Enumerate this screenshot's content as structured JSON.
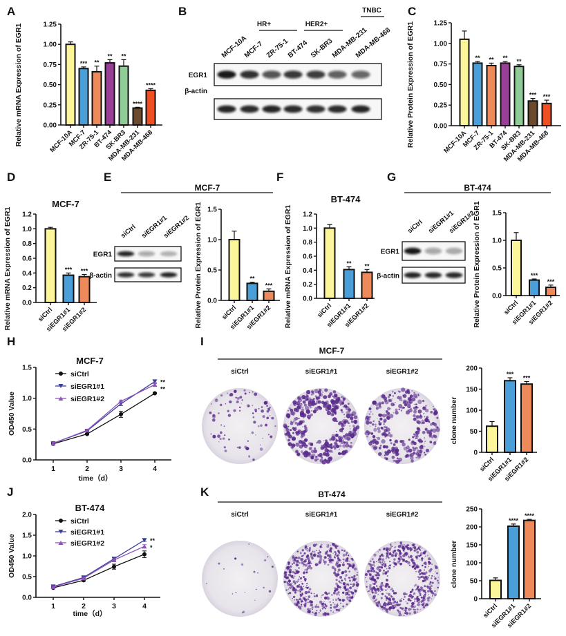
{
  "panel_letters": [
    "A",
    "B",
    "C",
    "D",
    "E",
    "F",
    "G",
    "H",
    "I",
    "J",
    "K"
  ],
  "blot_B": {
    "groups": [
      "HR+",
      "HER2+",
      "TNBC"
    ],
    "lanes": [
      "MCF-10A",
      "MCF-7",
      "ZR-75-1",
      "BT-474",
      "SK-BR3",
      "MDA-MB-231",
      "MDA-MB-468"
    ],
    "rows": [
      "EGR1",
      "β-actin"
    ]
  },
  "blot_E": {
    "title": "MCF-7",
    "lanes": [
      "siCtrl",
      "siEGR1#1",
      "siEGR1#2"
    ],
    "rows": [
      "EGR1",
      "β-actin"
    ]
  },
  "blot_G": {
    "title": "BT-474",
    "lanes": [
      "siCtrl",
      "siEGR1#1",
      "siEGR1#2"
    ],
    "rows": [
      "EGR1",
      "β-actin"
    ]
  },
  "colony_I": {
    "title": "MCF-7",
    "labels": [
      "siCtrl",
      "siEGR1#1",
      "siEGR1#2"
    ]
  },
  "colony_K": {
    "title": "BT-474",
    "labels": [
      "siCtrl",
      "siEGR1#1",
      "siEGR1#2"
    ]
  },
  "chart_data": [
    {
      "id": "A",
      "type": "bar",
      "title": "",
      "ylabel": "Relative mRNA Expression of EGR1",
      "categories": [
        "MCF-10A",
        "MCF-7",
        "ZR-75-1",
        "BT-474",
        "SK-BR3",
        "MDA-MB-231",
        "MDA-MB-468"
      ],
      "values": [
        1.0,
        0.7,
        0.66,
        0.77,
        0.73,
        0.21,
        0.43
      ],
      "errors": [
        0.03,
        0.02,
        0.07,
        0.04,
        0.08,
        0.01,
        0.02
      ],
      "significance": [
        "",
        "***",
        "**",
        "**",
        "**",
        "****",
        "****"
      ],
      "colors": [
        "#fdf59a",
        "#4a9fd8",
        "#ee8a5a",
        "#9a3f98",
        "#8fcc98",
        "#6b4a2e",
        "#f04e23"
      ],
      "ylim": [
        0,
        1.25
      ],
      "ytick_values": [
        0,
        0.25,
        0.5,
        0.75,
        1.0,
        1.25
      ],
      "ytick_labels": [
        "0.00",
        "0.25",
        "0.50",
        "0.75",
        "1.00",
        "1.25"
      ]
    },
    {
      "id": "C",
      "type": "bar",
      "title": "",
      "ylabel": "Relative Protein Expression of EGR1",
      "categories": [
        "MCF-10A",
        "MCF-7",
        "ZR-75-1",
        "BT-474",
        "SK-BR3",
        "MDA-MB-231",
        "MDA-MB-468"
      ],
      "values": [
        1.05,
        0.76,
        0.73,
        0.76,
        0.72,
        0.3,
        0.27
      ],
      "errors": [
        0.1,
        0.02,
        0.03,
        0.02,
        0.02,
        0.03,
        0.04
      ],
      "significance": [
        "",
        "**",
        "**",
        "**",
        "**",
        "***",
        "***"
      ],
      "colors": [
        "#fdf59a",
        "#4a9fd8",
        "#ee8a5a",
        "#9a3f98",
        "#8fcc98",
        "#6b4a2e",
        "#f04e23"
      ],
      "ylim": [
        0,
        1.25
      ],
      "ytick_values": [
        0,
        0.25,
        0.5,
        0.75,
        1.0,
        1.25
      ],
      "ytick_labels": [
        "0.00",
        "0.25",
        "0.50",
        "0.75",
        "1.00",
        "1.25"
      ]
    },
    {
      "id": "D",
      "type": "bar",
      "title": "MCF-7",
      "ylabel": "Relative mRNA Expression of EGR1",
      "categories": [
        "siCtrl",
        "siEGR1#1",
        "siEGR1#2"
      ],
      "values": [
        1.0,
        0.37,
        0.35
      ],
      "errors": [
        0.02,
        0.03,
        0.03
      ],
      "significance": [
        "",
        "***",
        "***"
      ],
      "colors": [
        "#fdf59a",
        "#4a9fd8",
        "#ee8a5a"
      ],
      "ylim": [
        0,
        1.2
      ],
      "ytick_values": [
        0,
        0.2,
        0.4,
        0.6,
        0.8,
        1.0,
        1.2
      ],
      "ytick_labels": [
        "0.0",
        "0.2",
        "0.4",
        "0.6",
        "0.8",
        "1.0",
        "1.2"
      ]
    },
    {
      "id": "E",
      "type": "bar",
      "title": "",
      "ylabel": "Relative Protein Expression of EGR1",
      "categories": [
        "siCtrl",
        "siEGR1#1",
        "siEGR1#2"
      ],
      "values": [
        1.0,
        0.28,
        0.15
      ],
      "errors": [
        0.14,
        0.02,
        0.04
      ],
      "significance": [
        "",
        "**",
        "***"
      ],
      "colors": [
        "#fdf59a",
        "#4a9fd8",
        "#ee8a5a"
      ],
      "ylim": [
        0,
        1.5
      ],
      "ytick_values": [
        0,
        0.5,
        1.0,
        1.5
      ],
      "ytick_labels": [
        "0.0",
        "0.5",
        "1.0",
        "1.5"
      ]
    },
    {
      "id": "F",
      "type": "bar",
      "title": "BT-474",
      "ylabel": "Relative mRNA Expression of EGR1",
      "categories": [
        "siCtrl",
        "siEGR1#1",
        "siEGR1#2"
      ],
      "values": [
        1.0,
        0.41,
        0.37
      ],
      "errors": [
        0.05,
        0.04,
        0.04
      ],
      "significance": [
        "",
        "**",
        "**"
      ],
      "colors": [
        "#fdf59a",
        "#4a9fd8",
        "#ee8a5a"
      ],
      "ylim": [
        0,
        1.2
      ],
      "ytick_values": [
        0,
        0.2,
        0.4,
        0.6,
        0.8,
        1.0,
        1.2
      ],
      "ytick_labels": [
        "0.0",
        "0.2",
        "0.4",
        "0.6",
        "0.8",
        "1.0",
        "1.2"
      ]
    },
    {
      "id": "G",
      "type": "bar",
      "title": "",
      "ylabel": "Relative Protein Expression of EGR1",
      "categories": [
        "siCtrl",
        "siEGR1#1",
        "siEGR1#2"
      ],
      "values": [
        1.0,
        0.28,
        0.15
      ],
      "errors": [
        0.14,
        0.02,
        0.04
      ],
      "significance": [
        "",
        "***",
        "***"
      ],
      "colors": [
        "#fdf59a",
        "#4a9fd8",
        "#ee8a5a"
      ],
      "ylim": [
        0,
        1.5
      ],
      "ytick_values": [
        0,
        0.5,
        1.0,
        1.5
      ],
      "ytick_labels": [
        "0.0",
        "0.5",
        "1.0",
        "1.5"
      ]
    },
    {
      "id": "H",
      "type": "line",
      "title": "MCF-7",
      "xlabel": "time（d）",
      "ylabel": "OD450 Value",
      "x": [
        1,
        2,
        3,
        4
      ],
      "xtick_labels": [
        "1",
        "2",
        "3",
        "4"
      ],
      "xlim": [
        0.7,
        4.5
      ],
      "ylim": [
        0,
        1.5
      ],
      "ytick_values": [
        0,
        0.5,
        1.0,
        1.5
      ],
      "ytick_labels": [
        "0.0",
        "0.5",
        "1.0",
        "1.5"
      ],
      "legend": "top-left",
      "series": [
        {
          "name": "siCtrl",
          "values": [
            0.26,
            0.42,
            0.74,
            1.08
          ],
          "errors": [
            0.02,
            0.01,
            0.05,
            0.01
          ],
          "color": "#111111",
          "marker": "circle",
          "significance": ""
        },
        {
          "name": "siEGR1#1",
          "values": [
            0.27,
            0.47,
            0.91,
            1.27
          ],
          "errors": [
            0.02,
            0.01,
            0.03,
            0.03
          ],
          "color": "#3b3f9c",
          "marker": "triangle-down",
          "significance": "**"
        },
        {
          "name": "siEGR1#2",
          "values": [
            0.27,
            0.48,
            0.95,
            1.22
          ],
          "errors": [
            0.02,
            0.01,
            0.02,
            0.03
          ],
          "color": "#8d53b8",
          "marker": "triangle-up",
          "significance": "**"
        }
      ]
    },
    {
      "id": "J",
      "type": "line",
      "title": "BT-474",
      "xlabel": "time（d）",
      "ylabel": "OD450 Value",
      "x": [
        1,
        2,
        3,
        4
      ],
      "xtick_labels": [
        "1",
        "2",
        "3",
        "4"
      ],
      "xlim": [
        0.7,
        4.5
      ],
      "ylim": [
        0,
        2.0
      ],
      "ytick_values": [
        0,
        0.5,
        1.0,
        1.5,
        2.0
      ],
      "ytick_labels": [
        "0.0",
        "0.5",
        "1.0",
        "1.5",
        "2.0"
      ],
      "legend": "top-left",
      "series": [
        {
          "name": "siCtrl",
          "values": [
            0.23,
            0.41,
            0.74,
            1.04
          ],
          "errors": [
            0.02,
            0.02,
            0.06,
            0.08
          ],
          "color": "#111111",
          "marker": "circle",
          "significance": ""
        },
        {
          "name": "siEGR1#1",
          "values": [
            0.26,
            0.48,
            0.93,
            1.38
          ],
          "errors": [
            0.02,
            0.02,
            0.03,
            0.03
          ],
          "color": "#3b3f9c",
          "marker": "triangle-down",
          "significance": "**"
        },
        {
          "name": "siEGR1#2",
          "values": [
            0.25,
            0.46,
            0.9,
            1.23
          ],
          "errors": [
            0.02,
            0.02,
            0.03,
            0.04
          ],
          "color": "#8d53b8",
          "marker": "triangle-up",
          "significance": "*"
        }
      ]
    },
    {
      "id": "I",
      "type": "bar",
      "title": "",
      "ylabel": "clone number",
      "categories": [
        "siCtrl",
        "siEGR1#1",
        "siEGR1#2"
      ],
      "values": [
        62,
        170,
        162
      ],
      "errors": [
        11,
        7,
        6
      ],
      "significance": [
        "",
        "***",
        "***"
      ],
      "colors": [
        "#fdf59a",
        "#4a9fd8",
        "#ee8a5a"
      ],
      "ylim": [
        0,
        200
      ],
      "ytick_values": [
        0,
        50,
        100,
        150,
        200
      ],
      "ytick_labels": [
        "0",
        "50",
        "100",
        "150",
        "200"
      ]
    },
    {
      "id": "K",
      "type": "bar",
      "title": "",
      "ylabel": "clone number",
      "categories": [
        "siCtrl",
        "siEGR1#1",
        "siEGR1#2"
      ],
      "values": [
        51,
        202,
        218
      ],
      "errors": [
        7,
        6,
        3
      ],
      "significance": [
        "",
        "****",
        "****"
      ],
      "colors": [
        "#fdf59a",
        "#4a9fd8",
        "#ee8a5a"
      ],
      "ylim": [
        0,
        250
      ],
      "ytick_values": [
        0,
        50,
        100,
        150,
        200,
        250
      ],
      "ytick_labels": [
        "0",
        "50",
        "100",
        "150",
        "200",
        "250"
      ]
    }
  ]
}
